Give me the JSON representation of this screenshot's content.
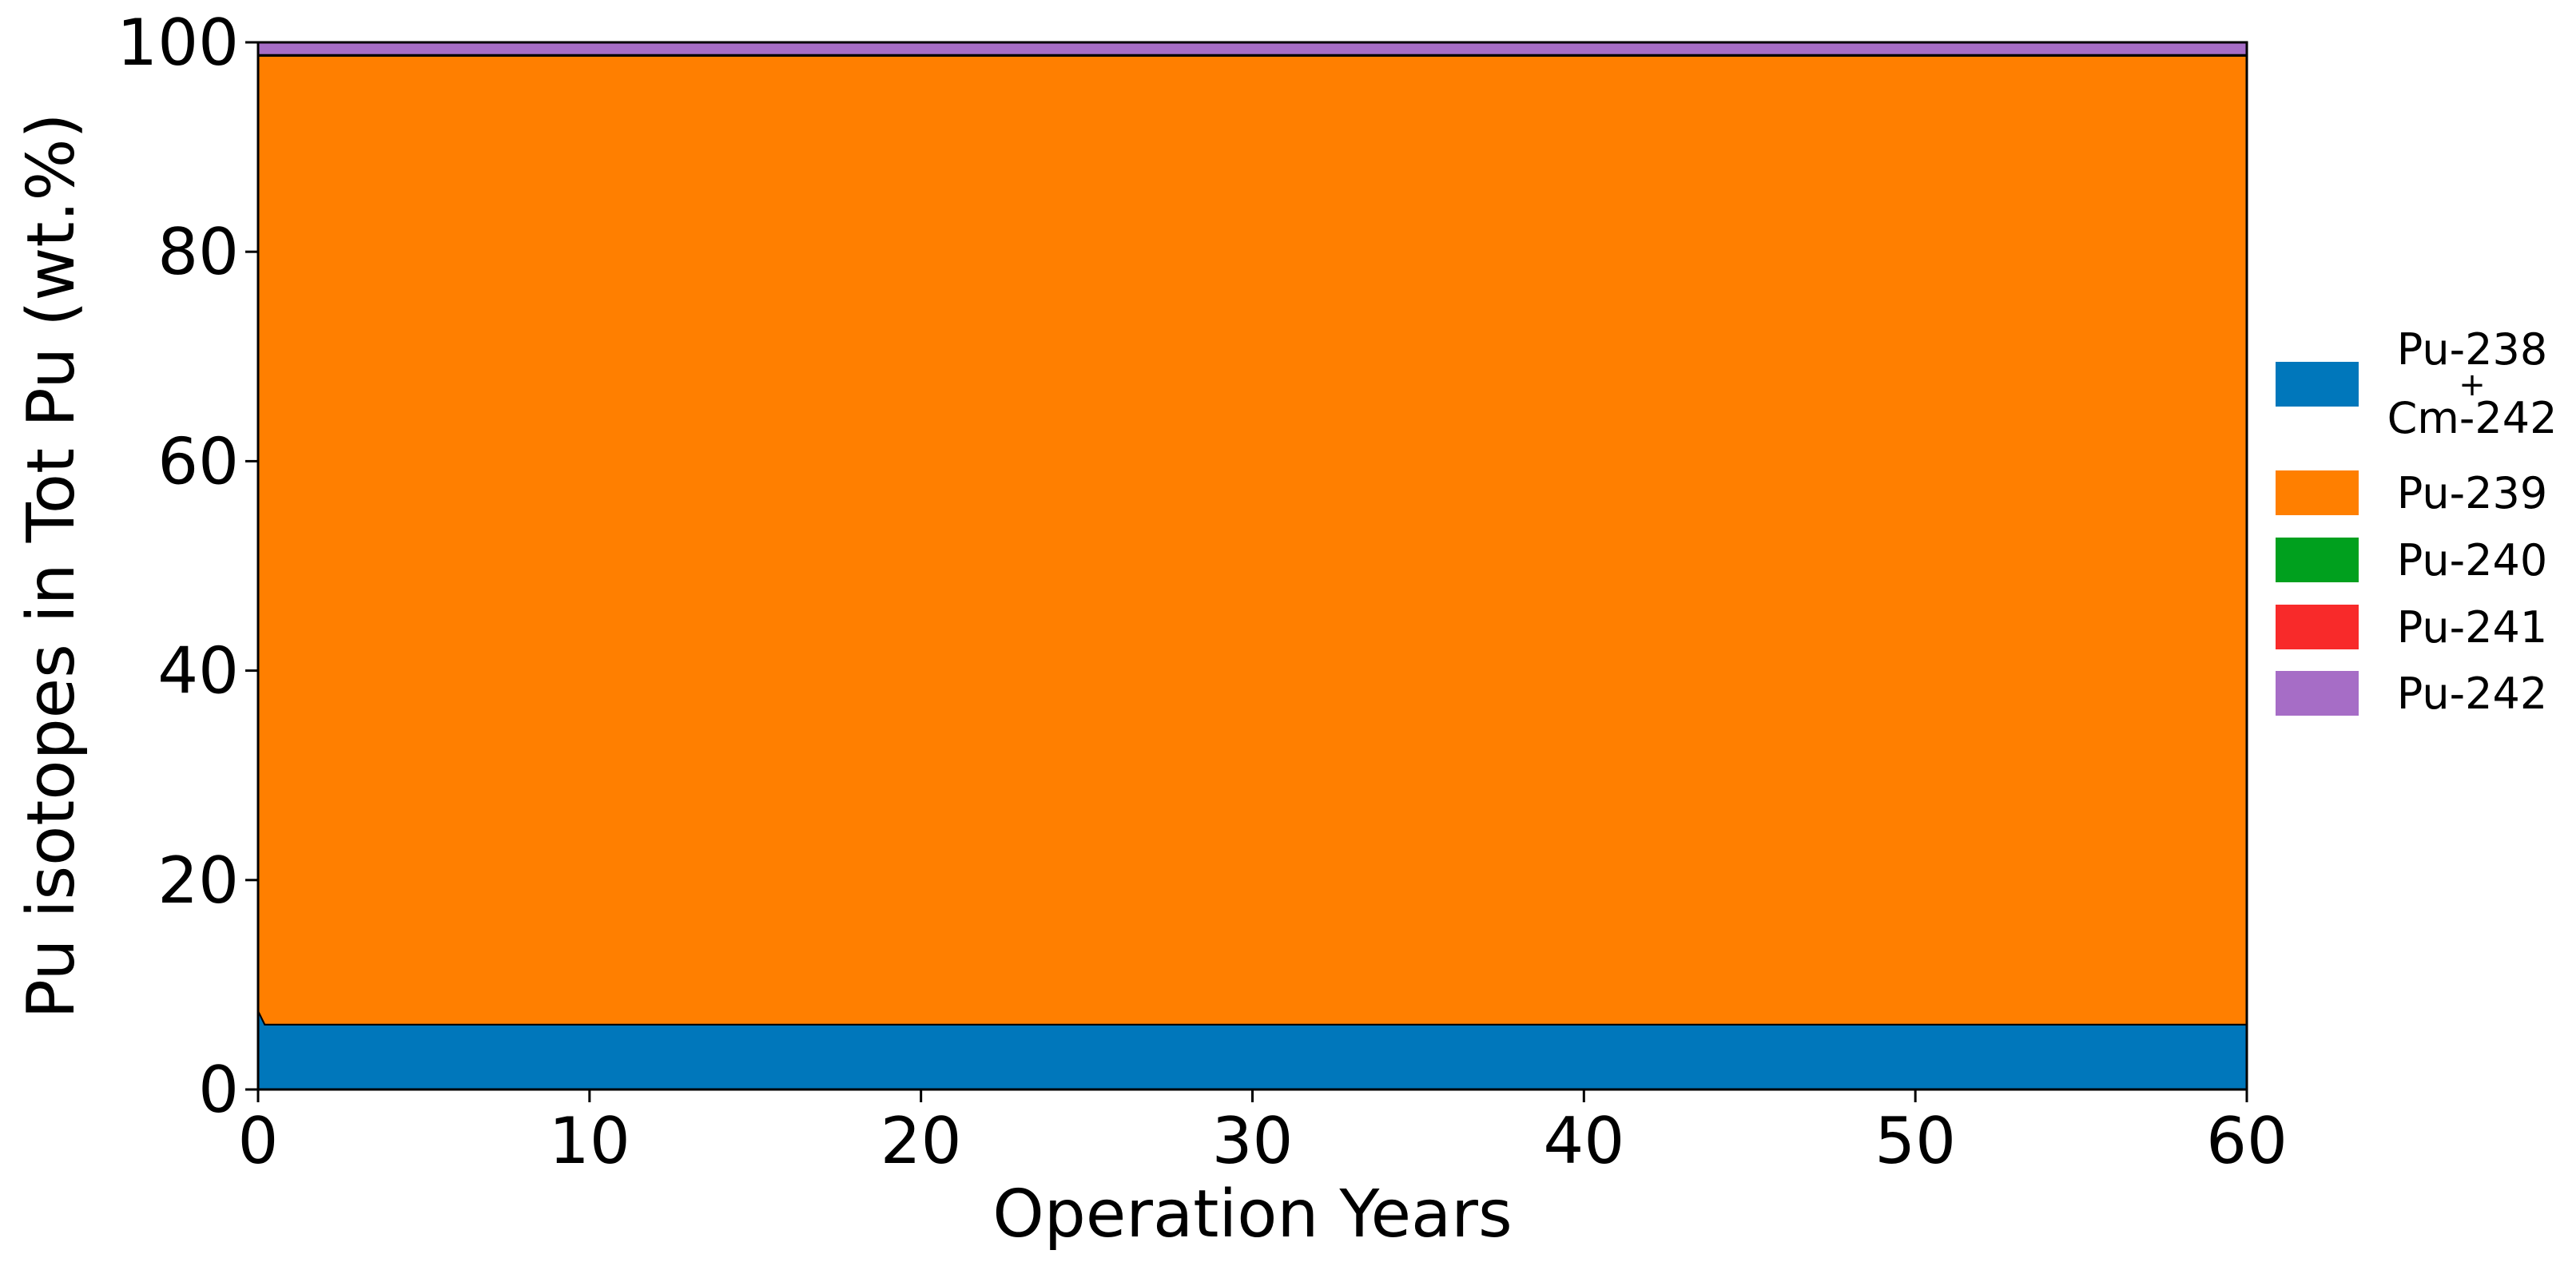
{
  "chart_data": {
    "type": "area",
    "stacked": true,
    "xlabel": "Operation Years",
    "ylabel": "Pu isotopes in Tot Pu (wt.%)",
    "xlim": [
      0,
      60
    ],
    "ylim": [
      0,
      100
    ],
    "xticks": [
      "0",
      "10",
      "20",
      "30",
      "40",
      "50",
      "60"
    ],
    "yticks": [
      "0",
      "20",
      "40",
      "60",
      "80",
      "100"
    ],
    "grid": false,
    "legend_position": "right",
    "x": [
      0,
      0.2,
      60
    ],
    "series": [
      {
        "name": "Pu-238 + Cm-242",
        "legend_lines": [
          "Pu-238",
          "+",
          "Cm-242"
        ],
        "color": "#0077bb",
        "values": [
          7.5,
          6.2,
          6.2
        ]
      },
      {
        "name": "Pu-239",
        "legend_lines": [
          "Pu-239"
        ],
        "color": "#ff7f00",
        "values": [
          91.2,
          92.5,
          92.5
        ]
      },
      {
        "name": "Pu-240",
        "legend_lines": [
          "Pu-240"
        ],
        "color": "#00a01e",
        "values": [
          0.05,
          0.05,
          0.05
        ]
      },
      {
        "name": "Pu-241",
        "legend_lines": [
          "Pu-241"
        ],
        "color": "#f82a2a",
        "values": [
          0.05,
          0.05,
          0.05
        ]
      },
      {
        "name": "Pu-242",
        "legend_lines": [
          "Pu-242"
        ],
        "color": "#a66dc6",
        "values": [
          1.2,
          1.2,
          1.2
        ]
      }
    ]
  }
}
